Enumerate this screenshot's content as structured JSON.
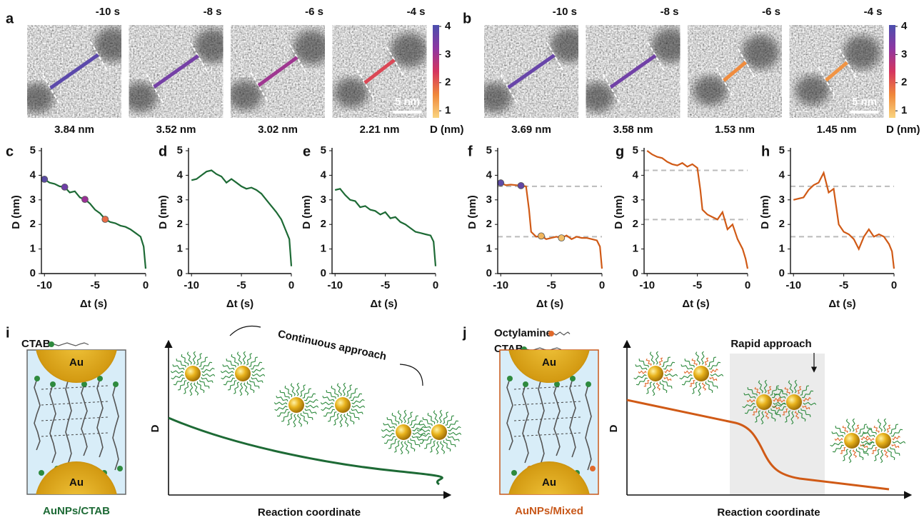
{
  "panels_top": [
    {
      "label": "a",
      "times": [
        "-10 s",
        "-8 s",
        "-6 s",
        "-4 s"
      ],
      "distances": [
        {
          "value": 3.84,
          "label": "3.84 nm"
        },
        {
          "value": 3.52,
          "label": "3.52 nm"
        },
        {
          "value": 3.02,
          "label": "3.02 nm"
        },
        {
          "value": 2.21,
          "label": "2.21 nm"
        }
      ],
      "scale_bar": "5 nm",
      "colorbar": {
        "lim": [
          0.75,
          4.05
        ],
        "ticks": [
          1,
          2,
          3,
          4
        ],
        "label": "D (nm)",
        "colors": [
          "#f9d47f",
          "#f0883a",
          "#d5355f",
          "#8d37a2",
          "#4b4fae"
        ]
      }
    },
    {
      "label": "b",
      "times": [
        "-10 s",
        "-8 s",
        "-6 s",
        "-4 s"
      ],
      "distances": [
        {
          "value": 3.69,
          "label": "3.69 nm"
        },
        {
          "value": 3.58,
          "label": "3.58 nm"
        },
        {
          "value": 1.53,
          "label": "1.53 nm"
        },
        {
          "value": 1.45,
          "label": "1.45 nm"
        }
      ],
      "scale_bar": "5 nm",
      "colorbar": {
        "lim": [
          0.75,
          4.05
        ],
        "ticks": [
          1,
          2,
          3,
          4
        ],
        "label": "D (nm)",
        "colors": [
          "#f9d47f",
          "#f0883a",
          "#d5355f",
          "#8d37a2",
          "#4b4fae"
        ]
      }
    }
  ],
  "chart_data": [
    {
      "type": "line",
      "panel": "c",
      "xlabel": "Δt (s)",
      "ylabel": "D (nm)",
      "xlim": [
        -10.3,
        0
      ],
      "ylim": [
        0,
        5
      ],
      "xticks": [
        -10,
        -5,
        0
      ],
      "yticks": [
        0,
        1,
        2,
        3,
        4,
        5
      ],
      "series": [
        {
          "color": "#1d6a35",
          "x": [
            -10,
            -9.5,
            -9,
            -8.5,
            -8,
            -7.5,
            -7,
            -6.5,
            -6,
            -5.5,
            -5,
            -4.5,
            -4,
            -3.5,
            -3,
            -2.5,
            -2,
            -1.5,
            -1,
            -0.5,
            -0.2,
            0
          ],
          "values": [
            3.84,
            3.7,
            3.65,
            3.55,
            3.52,
            3.3,
            3.35,
            3.1,
            3.02,
            2.85,
            2.6,
            2.45,
            2.21,
            2.1,
            2.05,
            1.95,
            1.9,
            1.8,
            1.65,
            1.5,
            1.1,
            0.2
          ]
        }
      ],
      "markers": {
        "x": [
          -10,
          -8,
          -6,
          -4
        ],
        "values": [
          3.84,
          3.52,
          3.02,
          2.21
        ],
        "colors": [
          "#5a4ca3",
          "#6e3fa6",
          "#9a3097",
          "#e86c45"
        ]
      }
    },
    {
      "type": "line",
      "panel": "d",
      "xlabel": "Δt (s)",
      "ylabel": "D (nm)",
      "xlim": [
        -10.3,
        0
      ],
      "ylim": [
        0,
        5
      ],
      "xticks": [
        -10,
        -5,
        0
      ],
      "yticks": [
        0,
        1,
        2,
        3,
        4,
        5
      ],
      "series": [
        {
          "color": "#1d6a35",
          "x": [
            -10,
            -9.5,
            -9,
            -8.5,
            -8,
            -7.5,
            -7,
            -6.5,
            -6,
            -5.5,
            -5,
            -4.5,
            -4,
            -3.5,
            -3,
            -2.5,
            -2,
            -1.5,
            -1,
            -0.5,
            -0.2,
            0
          ],
          "values": [
            3.8,
            3.85,
            4.0,
            4.15,
            4.2,
            4.05,
            3.95,
            3.7,
            3.85,
            3.7,
            3.55,
            3.45,
            3.5,
            3.4,
            3.25,
            3.0,
            2.75,
            2.5,
            2.2,
            1.7,
            1.4,
            0.3
          ]
        }
      ]
    },
    {
      "type": "line",
      "panel": "e",
      "xlabel": "Δt (s)",
      "ylabel": "D (nm)",
      "xlim": [
        -10.3,
        0
      ],
      "ylim": [
        0,
        5
      ],
      "xticks": [
        -10,
        -5,
        0
      ],
      "yticks": [
        0,
        1,
        2,
        3,
        4,
        5
      ],
      "series": [
        {
          "color": "#1d6a35",
          "x": [
            -10,
            -9.5,
            -9,
            -8.5,
            -8,
            -7.5,
            -7,
            -6.5,
            -6,
            -5.5,
            -5,
            -4.5,
            -4,
            -3.5,
            -3,
            -2.5,
            -2,
            -1.5,
            -1,
            -0.5,
            -0.2,
            0
          ],
          "values": [
            3.4,
            3.45,
            3.2,
            3.0,
            2.95,
            2.7,
            2.75,
            2.6,
            2.55,
            2.4,
            2.5,
            2.25,
            2.3,
            2.1,
            2.0,
            1.85,
            1.7,
            1.65,
            1.6,
            1.55,
            1.3,
            0.3
          ]
        }
      ]
    },
    {
      "type": "line",
      "panel": "f",
      "xlabel": "Δt (s)",
      "ylabel": "D (nm)",
      "xlim": [
        -10.3,
        0
      ],
      "ylim": [
        0,
        5
      ],
      "xticks": [
        -10,
        -5,
        0
      ],
      "yticks": [
        0,
        1,
        2,
        3,
        4,
        5
      ],
      "series": [
        {
          "color": "#d05a16",
          "x": [
            -10,
            -9.5,
            -9,
            -8.5,
            -8,
            -7.5,
            -7.2,
            -7,
            -6.5,
            -6,
            -5.5,
            -5,
            -4.5,
            -4,
            -3.5,
            -3,
            -2.5,
            -2,
            -1.5,
            -1,
            -0.5,
            -0.2,
            0
          ],
          "values": [
            3.69,
            3.6,
            3.62,
            3.6,
            3.58,
            3.55,
            2.6,
            1.7,
            1.5,
            1.53,
            1.4,
            1.45,
            1.5,
            1.45,
            1.55,
            1.4,
            1.5,
            1.45,
            1.45,
            1.4,
            1.35,
            1.1,
            0.2
          ]
        }
      ],
      "markers": {
        "x": [
          -10,
          -8,
          -6,
          -4
        ],
        "values": [
          3.69,
          3.58,
          1.53,
          1.45
        ],
        "colors": [
          "#5e4ba6",
          "#6346a5",
          "#f1b55c",
          "#f3bf66"
        ]
      },
      "reference_lines": [
        3.55,
        1.5
      ]
    },
    {
      "type": "line",
      "panel": "g",
      "xlabel": "Δt (s)",
      "ylabel": "D (nm)",
      "xlim": [
        -10.3,
        0
      ],
      "ylim": [
        0,
        5
      ],
      "xticks": [
        -10,
        -5,
        0
      ],
      "yticks": [
        0,
        1,
        2,
        3,
        4,
        5
      ],
      "series": [
        {
          "color": "#d05a16",
          "x": [
            -10,
            -9.5,
            -9,
            -8.5,
            -8,
            -7.5,
            -7,
            -6.5,
            -6,
            -5.5,
            -5,
            -4.7,
            -4.5,
            -4,
            -3.5,
            -3,
            -2.5,
            -2,
            -1.5,
            -1,
            -0.5,
            -0.2,
            0
          ],
          "values": [
            5.0,
            4.85,
            4.75,
            4.7,
            4.55,
            4.45,
            4.4,
            4.5,
            4.35,
            4.45,
            4.3,
            3.4,
            2.6,
            2.4,
            2.3,
            2.2,
            2.5,
            1.8,
            2.0,
            1.4,
            1.0,
            0.6,
            0.2
          ]
        }
      ],
      "reference_lines": [
        4.2,
        2.2
      ]
    },
    {
      "type": "line",
      "panel": "h",
      "xlabel": "Δt (s)",
      "ylabel": "D (nm)",
      "xlim": [
        -10.3,
        0
      ],
      "ylim": [
        0,
        5
      ],
      "xticks": [
        -10,
        -5,
        0
      ],
      "yticks": [
        0,
        1,
        2,
        3,
        4,
        5
      ],
      "series": [
        {
          "color": "#d05a16",
          "x": [
            -10,
            -9.5,
            -9,
            -8.5,
            -8,
            -7.5,
            -7,
            -6.5,
            -6,
            -5.5,
            -5,
            -4.5,
            -4,
            -3.5,
            -3,
            -2.5,
            -2,
            -1.5,
            -1,
            -0.5,
            -0.2,
            0
          ],
          "values": [
            3.0,
            3.05,
            3.1,
            3.4,
            3.6,
            3.7,
            4.1,
            3.3,
            3.45,
            2.0,
            1.7,
            1.6,
            1.4,
            1.0,
            1.5,
            1.8,
            1.5,
            1.6,
            1.5,
            1.2,
            0.9,
            0.2
          ]
        }
      ],
      "reference_lines": [
        3.55,
        1.5
      ]
    }
  ],
  "schematics": [
    {
      "label": "i",
      "ligands": [
        "CTAB"
      ],
      "particle": [
        "Au",
        "Au"
      ],
      "system": "AuNPs/CTAB",
      "annotation": "Continuous approach",
      "ylabel": "D",
      "xlabel": "Reaction coordinate"
    },
    {
      "label": "j",
      "ligands": [
        "Octylamine",
        "CTAB"
      ],
      "particle": [
        "Au",
        "Au"
      ],
      "system": "AuNPs/Mixed",
      "annotation": "Rapid approach",
      "ylabel": "D",
      "xlabel": "Reaction coordinate"
    }
  ]
}
